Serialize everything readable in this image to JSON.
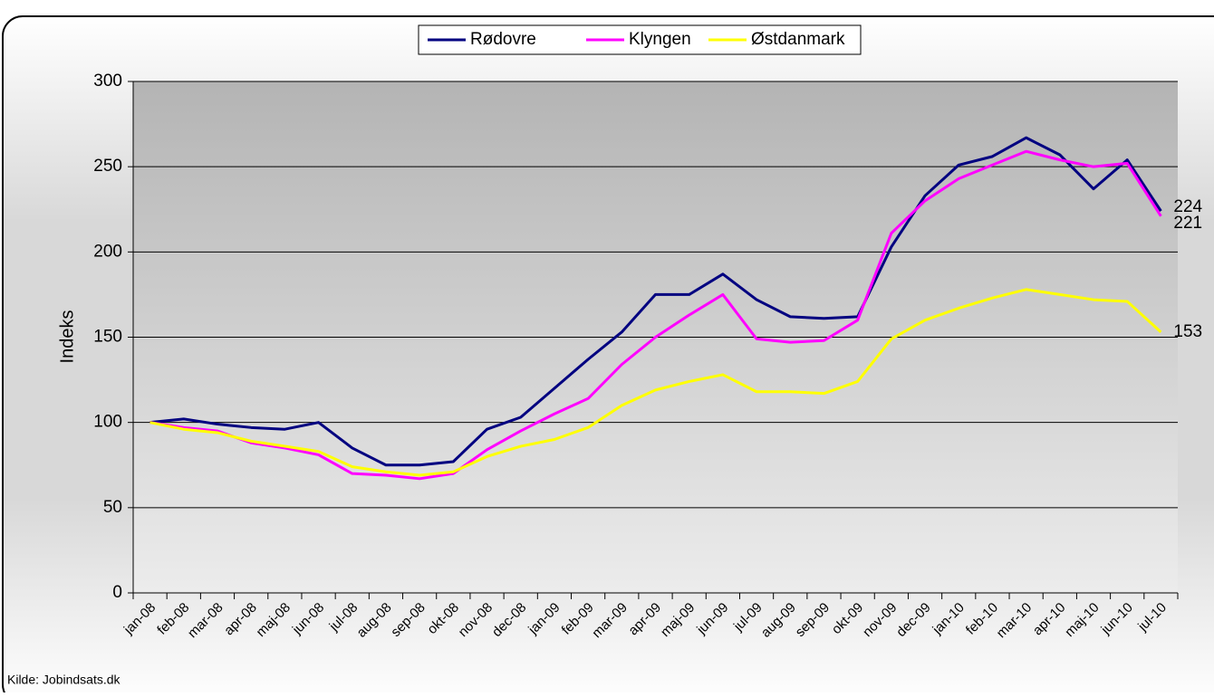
{
  "chart_data": {
    "type": "line",
    "y_label": "Indeks",
    "source": "Kilde: Jobindsats.dk",
    "categories": [
      "jan-08",
      "feb-08",
      "mar-08",
      "apr-08",
      "maj-08",
      "jun-08",
      "jul-08",
      "aug-08",
      "sep-08",
      "okt-08",
      "nov-08",
      "dec-08",
      "jan-09",
      "feb-09",
      "mar-09",
      "apr-09",
      "maj-09",
      "jun-09",
      "jul-09",
      "aug-09",
      "sep-09",
      "okt-09",
      "nov-09",
      "dec-09",
      "jan-10",
      "feb-10",
      "mar-10",
      "apr-10",
      "maj-10",
      "jun-10",
      "jul-10"
    ],
    "series": [
      {
        "name": "Rødovre",
        "color": "#000080",
        "values": [
          100,
          102,
          99,
          97,
          96,
          100,
          85,
          75,
          75,
          77,
          96,
          103,
          120,
          137,
          153,
          175,
          175,
          187,
          172,
          162,
          161,
          162,
          203,
          233,
          251,
          256,
          267,
          257,
          237,
          254,
          224
        ]
      },
      {
        "name": "Klyngen",
        "color": "#ff00ff",
        "values": [
          100,
          97,
          95,
          88,
          85,
          81,
          70,
          69,
          67,
          70,
          84,
          95,
          105,
          114,
          134,
          150,
          163,
          175,
          149,
          147,
          148,
          160,
          211,
          230,
          243,
          251,
          259,
          254,
          250,
          252,
          221
        ]
      },
      {
        "name": "Østdanmark",
        "color": "#ffff00",
        "values": [
          100,
          96,
          94,
          89,
          86,
          83,
          74,
          71,
          69,
          71,
          80,
          86,
          90,
          97,
          110,
          119,
          124,
          128,
          118,
          118,
          117,
          124,
          149,
          160,
          167,
          173,
          178,
          175,
          172,
          171,
          153
        ]
      }
    ],
    "ylim": [
      0,
      300
    ],
    "yticks": [
      0,
      50,
      100,
      150,
      200,
      250,
      300
    ],
    "grid": true,
    "legend": "top"
  }
}
